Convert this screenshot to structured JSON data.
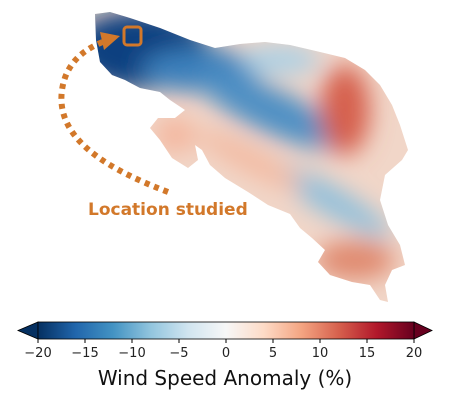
{
  "annotation": "Location studied",
  "colorbar": {
    "label": "Wind Speed Anomaly (%)",
    "colormap": "RdBu_r",
    "lim": [
      -20,
      20
    ],
    "ticks": [
      {
        "value": -20,
        "label": "−20"
      },
      {
        "value": -15,
        "label": "−15"
      },
      {
        "value": -10,
        "label": "−10"
      },
      {
        "value": -5,
        "label": "−5"
      },
      0,
      5,
      10,
      15,
      20
    ]
  }
}
